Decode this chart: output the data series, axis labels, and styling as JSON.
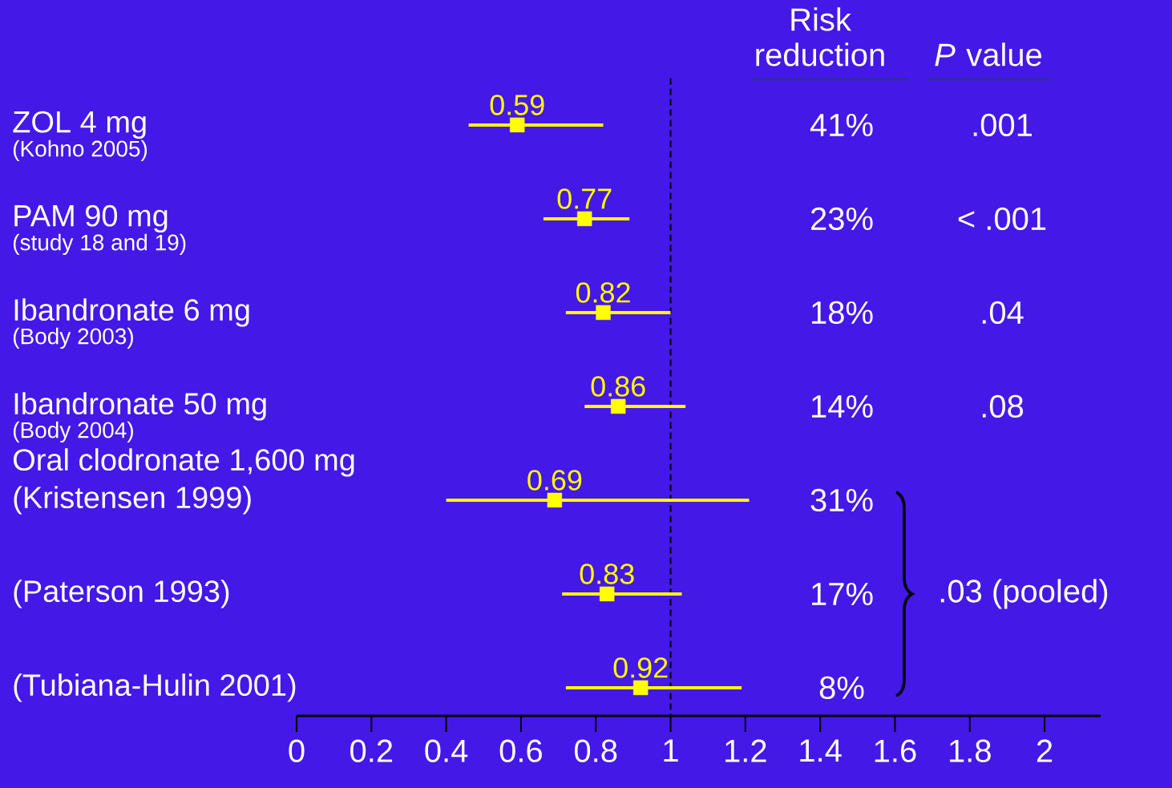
{
  "chart_data": {
    "type": "scatter",
    "orientation": "horizontal",
    "categories": [
      "ZOL 4 mg",
      "PAM 90 mg",
      "Ibandronate 6 mg",
      "Ibandronate 50 mg",
      "(Kristensen 1999)",
      "(Paterson 1993)",
      "(Tubiana-Hulin 2001)"
    ],
    "values": [
      0.59,
      0.77,
      0.82,
      0.86,
      0.69,
      0.83,
      0.92
    ],
    "errors": [
      [
        0.46,
        0.82
      ],
      [
        0.66,
        0.89
      ],
      [
        0.72,
        1.0
      ],
      [
        0.77,
        1.04
      ],
      [
        0.4,
        1.21
      ],
      [
        0.71,
        1.03
      ],
      [
        0.72,
        1.19
      ]
    ],
    "color": "#ffff00",
    "marker": "square",
    "data_labels": true,
    "xlim": [
      0,
      2.15
    ],
    "xticks": [
      0,
      0.2,
      0.4,
      0.6,
      0.8,
      1,
      1.2,
      1.4,
      1.6,
      1.8,
      2
    ],
    "ref_lines": [
      {
        "axis": "x",
        "value": 1,
        "line_style": "dashed",
        "color": "#000000"
      }
    ],
    "annotations": [
      "(Kohno 2005)",
      "(study 18 and 19)",
      "(Body 2003)",
      "(Body 2004)",
      "Oral clodronate 1,600 mg",
      "Risk reduction",
      "*P* value",
      "41%",
      ".001",
      "23%",
      "< .001",
      "18%",
      ".04",
      "14%",
      ".08",
      "31%",
      "17%",
      "8%",
      ".03 (pooled)"
    ]
  }
}
